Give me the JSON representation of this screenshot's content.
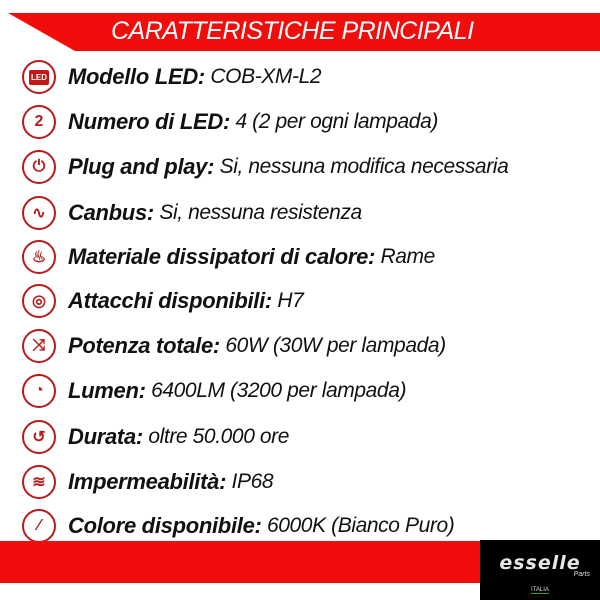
{
  "header": {
    "title": "CARATTERISTICHE PRINCIPALI"
  },
  "colors": {
    "accent": "#f20d0d",
    "icon": "#b51c1c"
  },
  "features": [
    {
      "icon": "led-icon",
      "glyph": "LED",
      "label": "Modello LED:",
      "value": " COB-XM-L2"
    },
    {
      "icon": "number-two-icon",
      "glyph": "2",
      "label": "Numero di LED:",
      "value": " 4 (2 per ogni lampada)"
    },
    {
      "icon": "plug-icon",
      "glyph": "⏻",
      "label": "Plug and play:",
      "value": " Si, nessuna modifica necessaria"
    },
    {
      "icon": "wave-signal-icon",
      "glyph": "∿",
      "label": "Canbus:",
      "value": " Si, nessuna resistenza"
    },
    {
      "icon": "heat-sink-icon",
      "glyph": "♨",
      "label": "Materiale dissipatori di calore:",
      "value": " Rame"
    },
    {
      "icon": "socket-icon",
      "glyph": "◎",
      "label": "Attacchi disponibili:",
      "value": " H7"
    },
    {
      "icon": "shuffle-icon",
      "glyph": "⤨",
      "label": "Potenza totale:",
      "value": " 60W (30W per lampada)"
    },
    {
      "icon": "gauge-icon",
      "glyph": "◔",
      "label": "Lumen:",
      "value": " 6400LM (3200 per lampada)"
    },
    {
      "icon": "clock-icon",
      "glyph": "↺",
      "label": "Durata:",
      "value": " oltre 50.000 ore"
    },
    {
      "icon": "water-drop-icon",
      "glyph": "≋",
      "label": "Impermeabilità:",
      "value": " IP68"
    },
    {
      "icon": "brush-icon",
      "glyph": "⁄",
      "label": "Colore disponibile:",
      "value": " 6000K (Bianco Puro)"
    }
  ],
  "logo": {
    "brand": "esselle",
    "sub": "Parts",
    "country": "ITALIA"
  }
}
